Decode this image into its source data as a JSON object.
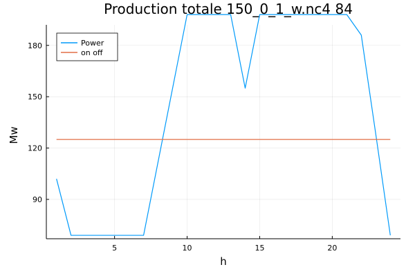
{
  "chart_data": {
    "type": "line",
    "title": "Production  totale 150_0_1_w.nc4 84",
    "xlabel": "h",
    "ylabel": "Mw",
    "xlim": [
      0.3,
      24.7
    ],
    "ylim": [
      67,
      192
    ],
    "xticks": [
      5,
      10,
      15,
      20
    ],
    "yticks": [
      90,
      120,
      150,
      180
    ],
    "grid": true,
    "legend_position": "top-left",
    "series": [
      {
        "name": "Power",
        "color": "#009AFA",
        "x": [
          1,
          2,
          3,
          4,
          5,
          6,
          7,
          8,
          9,
          10,
          11,
          12,
          13,
          14,
          15,
          16,
          17,
          18,
          19,
          20,
          21,
          22,
          23,
          24
        ],
        "y": [
          102,
          69,
          69,
          69,
          69,
          69,
          69,
          112,
          155,
          198,
          198,
          198,
          198,
          155,
          198,
          198,
          198,
          198,
          198,
          198,
          198,
          186,
          128,
          69
        ]
      },
      {
        "name": "on off",
        "color": "#E26F46",
        "x": [
          1,
          24
        ],
        "y": [
          125,
          125
        ]
      }
    ]
  }
}
